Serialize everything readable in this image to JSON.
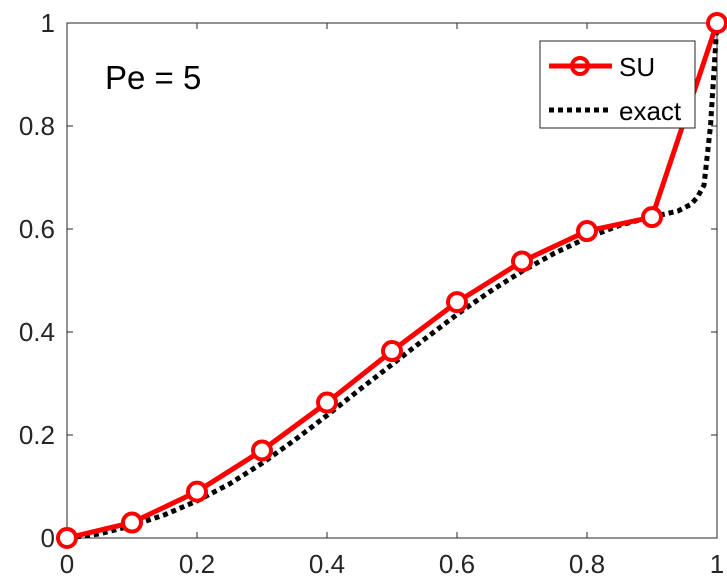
{
  "chart_data": {
    "type": "line",
    "title": "",
    "xlabel": "",
    "ylabel": "",
    "xlim": [
      0,
      1
    ],
    "ylim": [
      0,
      1
    ],
    "grid": false,
    "legend_position": "top-right",
    "x_ticks": [
      "0",
      "0.2",
      "0.4",
      "0.6",
      "0.8",
      "1"
    ],
    "x_tick_values": [
      0,
      0.2,
      0.4,
      0.6,
      0.8,
      1
    ],
    "y_ticks": [
      "0",
      "0.2",
      "0.4",
      "0.6",
      "0.8",
      "1"
    ],
    "y_tick_values": [
      0,
      0.2,
      0.4,
      0.6,
      0.8,
      1
    ],
    "annotation": "Pe = 5",
    "series": [
      {
        "name": "SU",
        "color": "#ff0000",
        "style": "solid",
        "marker": "circle",
        "x": [
          0,
          0.1,
          0.2,
          0.3,
          0.4,
          0.5,
          0.6,
          0.7,
          0.8,
          0.9,
          1.0
        ],
        "y": [
          0,
          0.03,
          0.09,
          0.17,
          0.263,
          0.363,
          0.458,
          0.537,
          0.596,
          0.623,
          1.0
        ]
      },
      {
        "name": "exact",
        "color": "#000000",
        "style": "dotted",
        "marker": "none",
        "x": [
          0,
          0.05,
          0.1,
          0.15,
          0.2,
          0.25,
          0.3,
          0.35,
          0.4,
          0.45,
          0.5,
          0.55,
          0.6,
          0.65,
          0.7,
          0.75,
          0.8,
          0.85,
          0.9,
          0.92,
          0.94,
          0.96,
          0.97,
          0.98,
          0.99,
          1.0
        ],
        "y": [
          0,
          0.008,
          0.024,
          0.045,
          0.072,
          0.105,
          0.145,
          0.19,
          0.238,
          0.288,
          0.337,
          0.386,
          0.434,
          0.478,
          0.518,
          0.553,
          0.583,
          0.607,
          0.624,
          0.629,
          0.635,
          0.648,
          0.662,
          0.685,
          0.8,
          1.0
        ]
      }
    ]
  }
}
